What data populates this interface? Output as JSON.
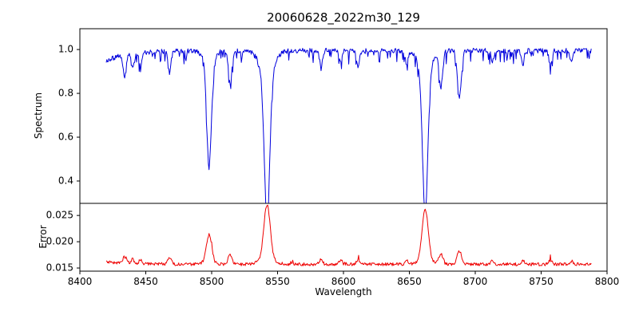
{
  "figure": {
    "background": "#ffffff",
    "axis_color": "#000000"
  },
  "chart_data": {
    "type": "line",
    "title": "20060628_2022m30_129",
    "xlabel": "Wavelength",
    "xlim": [
      8400,
      8800
    ],
    "xticks": [
      8400,
      8450,
      8500,
      8550,
      8600,
      8650,
      8700,
      8750,
      8800
    ],
    "data_x_range": [
      8420,
      8788
    ],
    "sampling_step": 0.5,
    "seed": 20060628,
    "grid": false,
    "legend": "none",
    "panels": [
      {
        "name": "spectrum",
        "ylabel": "Spectrum",
        "ylim": [
          0.298,
          1.095
        ],
        "yticks": [
          0.4,
          0.6,
          0.8,
          1.0
        ],
        "ytick_labels": [
          "0.4",
          "0.6",
          "0.8",
          "1.0"
        ],
        "color": "#0000dd"
      },
      {
        "name": "error",
        "ylabel": "Error",
        "ylim": [
          0.0144,
          0.0273
        ],
        "yticks": [
          0.015,
          0.02,
          0.025
        ],
        "ytick_labels": [
          "0.015",
          "0.020",
          "0.025"
        ],
        "color": "#ee0000"
      }
    ],
    "spectrum_model": {
      "continuum": 0.995,
      "jitter": 0.022,
      "dip_probability": 0.16,
      "dip_max": 0.055,
      "left_edge_drop": {
        "amount": 0.045,
        "scale": 18
      }
    },
    "absorption_lines": [
      {
        "center": 8434,
        "depth": 0.1,
        "sigma": 1.2
      },
      {
        "center": 8440,
        "depth": 0.07,
        "sigma": 1.0
      },
      {
        "center": 8446,
        "depth": 0.06,
        "sigma": 1.0
      },
      {
        "center": 8468,
        "depth": 0.09,
        "sigma": 1.2
      },
      {
        "center": 8498,
        "depth": 0.47,
        "sigma": 1.7,
        "err_peak": 0.0052
      },
      {
        "center": 8498,
        "depth": 0.06,
        "sigma": 4.0,
        "err_peak": 0.0004
      },
      {
        "center": 8514,
        "depth": 0.15,
        "sigma": 1.3
      },
      {
        "center": 8542,
        "depth": 0.66,
        "sigma": 2.1,
        "err_peak": 0.0105
      },
      {
        "center": 8542,
        "depth": 0.1,
        "sigma": 5.5,
        "err_peak": 0.0008
      },
      {
        "center": 8583,
        "depth": 0.07,
        "sigma": 1.1
      },
      {
        "center": 8598,
        "depth": 0.06,
        "sigma": 1.0
      },
      {
        "center": 8611,
        "depth": 0.07,
        "sigma": 1.1
      },
      {
        "center": 8648,
        "depth": 0.06,
        "sigma": 1.0
      },
      {
        "center": 8662,
        "depth": 0.65,
        "sigma": 2.0,
        "err_peak": 0.0098
      },
      {
        "center": 8662,
        "depth": 0.09,
        "sigma": 5.0,
        "err_peak": 0.0007
      },
      {
        "center": 8674,
        "depth": 0.16,
        "sigma": 1.3
      },
      {
        "center": 8688,
        "depth": 0.21,
        "sigma": 1.5
      },
      {
        "center": 8713,
        "depth": 0.05,
        "sigma": 1.0
      },
      {
        "center": 8736,
        "depth": 0.06,
        "sigma": 1.0
      },
      {
        "center": 8757,
        "depth": 0.07,
        "sigma": 1.1
      },
      {
        "center": 8773,
        "depth": 0.05,
        "sigma": 1.0
      }
    ],
    "error_model": {
      "baseline": 0.0157,
      "jitter": 0.0006,
      "small_line_scale": 0.012,
      "left_edge_bump": 0.0005,
      "left_edge_scale": 20,
      "spike_probability": 0.02,
      "spike_max": 0.0008
    }
  }
}
